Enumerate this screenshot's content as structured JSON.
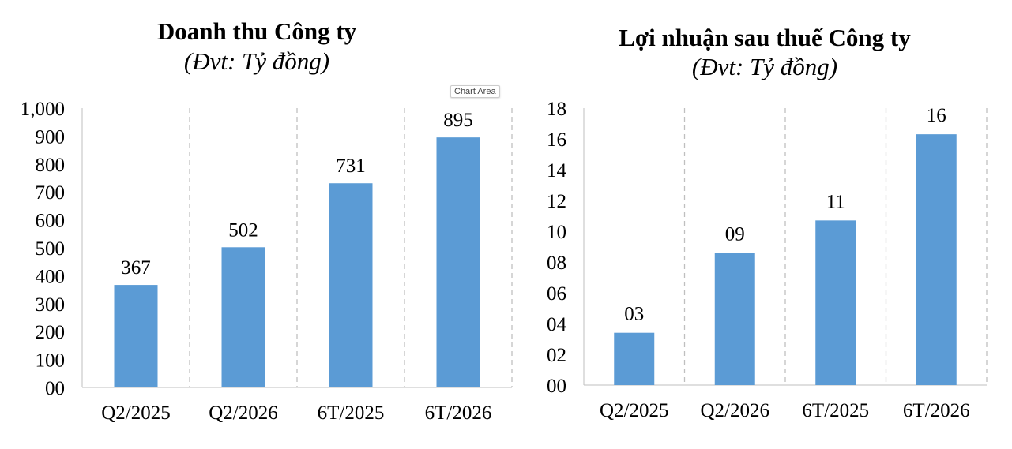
{
  "tooltip": "Chart Area",
  "chart_data": [
    {
      "type": "bar",
      "title": "Doanh thu Công ty",
      "subtitle": "(Đvt: Tỷ đồng)",
      "categories": [
        "Q2/2025",
        "Q2/2026",
        "6T/2025",
        "6T/2026"
      ],
      "values": [
        367,
        502,
        731,
        895
      ],
      "data_labels": [
        "367",
        "502",
        "731",
        "895"
      ],
      "ylim": [
        0,
        1000
      ],
      "yticks": [
        "00",
        "100",
        "200",
        "300",
        "400",
        "500",
        "600",
        "700",
        "800",
        "900",
        "1,000"
      ],
      "bar_color": "#5B9BD5",
      "grid": "vertical dashed separators"
    },
    {
      "type": "bar",
      "title": "Lợi nhuận sau thuế Công ty",
      "subtitle": "(Đvt: Tỷ đồng)",
      "categories": [
        "Q2/2025",
        "Q2/2026",
        "6T/2025",
        "6T/2026"
      ],
      "values": [
        3.4,
        8.6,
        10.7,
        16.3
      ],
      "data_labels": [
        "03",
        "09",
        "11",
        "16"
      ],
      "ylim": [
        0,
        18
      ],
      "yticks": [
        "00",
        "02",
        "04",
        "06",
        "08",
        "10",
        "12",
        "14",
        "16",
        "18"
      ],
      "bar_color": "#5B9BD5",
      "grid": "vertical dashed separators"
    }
  ]
}
